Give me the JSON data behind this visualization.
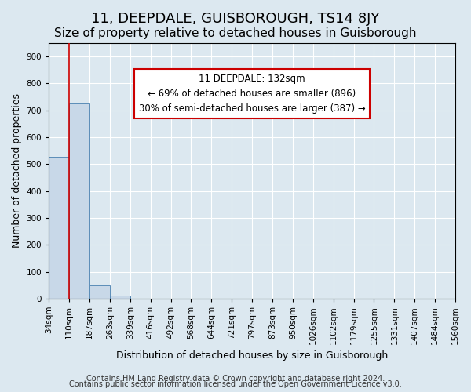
{
  "title": "11, DEEPDALE, GUISBOROUGH, TS14 8JY",
  "subtitle": "Size of property relative to detached houses in Guisborough",
  "xlabel": "Distribution of detached houses by size in Guisborough",
  "ylabel": "Number of detached properties",
  "bin_labels": [
    "34sqm",
    "110sqm",
    "187sqm",
    "263sqm",
    "339sqm",
    "416sqm",
    "492sqm",
    "568sqm",
    "644sqm",
    "721sqm",
    "797sqm",
    "873sqm",
    "950sqm",
    "1026sqm",
    "1102sqm",
    "1179sqm",
    "1255sqm",
    "1331sqm",
    "1407sqm",
    "1484sqm",
    "1560sqm"
  ],
  "bar_values": [
    527,
    725,
    50,
    10,
    0,
    0,
    0,
    0,
    0,
    0,
    0,
    0,
    0,
    0,
    0,
    0,
    0,
    0,
    0,
    0
  ],
  "bar_color": "#c8d8e8",
  "bar_edge_color": "#5b8db8",
  "annotation_box_text": "11 DEEPDALE: 132sqm\n← 69% of detached houses are smaller (896)\n30% of semi-detached houses are larger (387) →",
  "annotation_box_edge_color": "#cc0000",
  "annotation_box_text_color": "#000000",
  "red_line_x": 1,
  "ylim": [
    0,
    950
  ],
  "yticks": [
    0,
    100,
    200,
    300,
    400,
    500,
    600,
    700,
    800,
    900
  ],
  "background_color": "#dce8f0",
  "plot_background_color": "#dce8f0",
  "footer_line1": "Contains HM Land Registry data © Crown copyright and database right 2024.",
  "footer_line2": "Contains public sector information licensed under the Open Government Licence v3.0.",
  "title_fontsize": 13,
  "subtitle_fontsize": 11,
  "axis_label_fontsize": 9,
  "tick_fontsize": 7.5,
  "footer_fontsize": 7
}
